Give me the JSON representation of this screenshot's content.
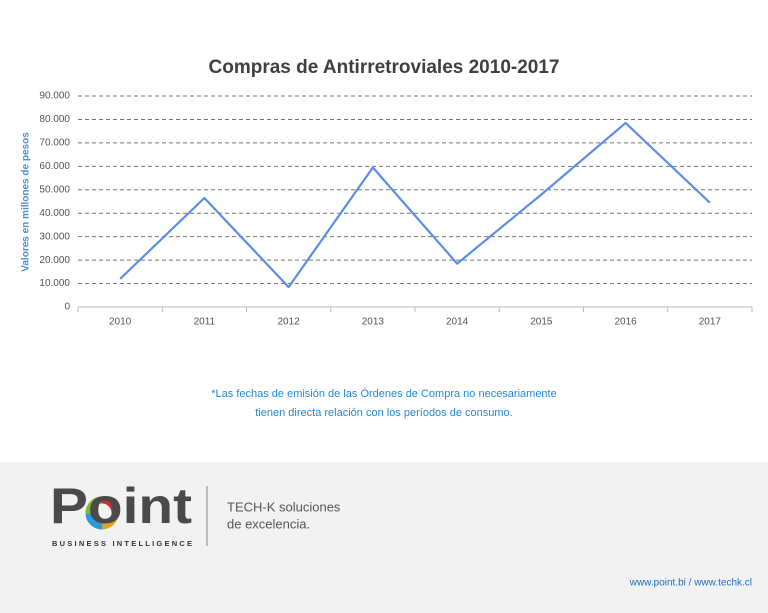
{
  "chart_data": {
    "type": "line",
    "title": "Compras de Antirretroviales  2010-2017",
    "y_label": "Valores en millones  de pesos",
    "categories": [
      "2010",
      "2011",
      "2012",
      "2013",
      "2014",
      "2015",
      "2016",
      "2017"
    ],
    "values": [
      12000,
      46500,
      8500,
      59500,
      18500,
      48000,
      78500,
      44500
    ],
    "color": "#5b8ee6",
    "ylim": [
      0,
      90000
    ],
    "yticks": [
      0,
      {
        "value": 10000,
        "label": "10.000"
      },
      {
        "value": 20000,
        "label": "20.000"
      },
      {
        "value": 30000,
        "label": "30.000"
      },
      {
        "value": 40000,
        "label": "40.000"
      },
      {
        "value": 50000,
        "label": "50.000"
      },
      {
        "value": 60000,
        "label": "60.000"
      },
      {
        "value": 70000,
        "label": "70.000"
      },
      {
        "value": 80000,
        "label": "80.000"
      },
      {
        "value": 90000,
        "label": "90.000"
      }
    ],
    "grid": true
  },
  "footnote": [
    "*Las fechas de emisión de las Órdenes de Compra no necesariamente",
    "tienen directa relación con los períodos de consumo."
  ],
  "footer": {
    "logo": "Point",
    "logo_tagline": "BUSINESS INTELLIGENCE",
    "slogan": [
      "TECH-K soluciones",
      "de excelencia."
    ],
    "links": "www.point.bi / www.techk.cl"
  }
}
